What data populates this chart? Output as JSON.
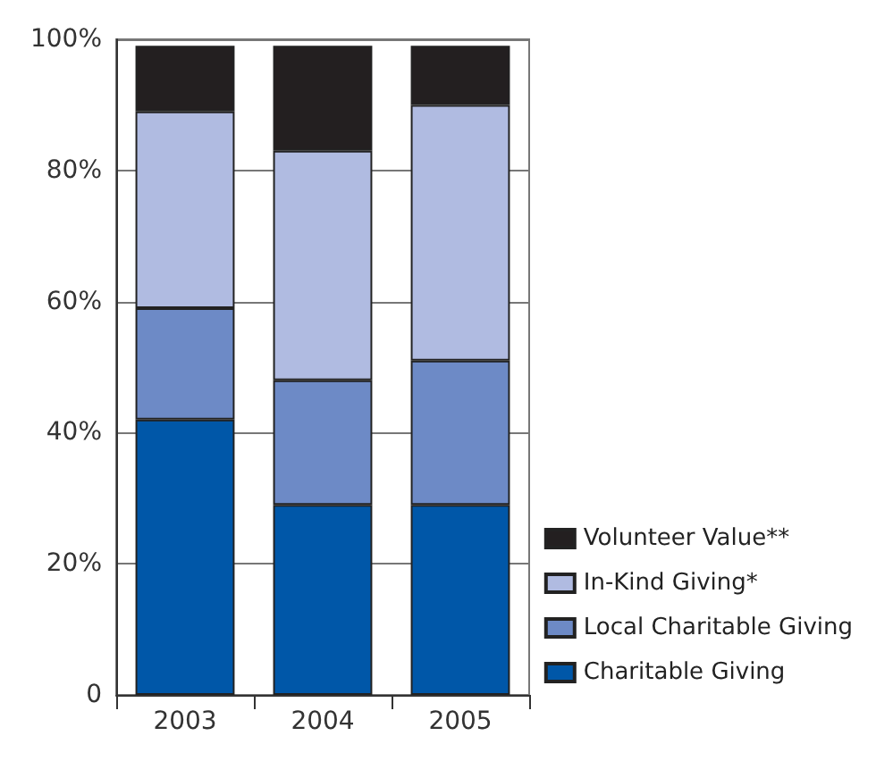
{
  "chart_data": {
    "type": "bar",
    "stacked": true,
    "categories": [
      "2003",
      "2004",
      "2005"
    ],
    "series": [
      {
        "name": "Charitable Giving",
        "color": "#0057a8",
        "values": [
          42,
          29,
          29
        ]
      },
      {
        "name": "Local Charitable Giving",
        "color": "#6d8ac6",
        "values": [
          17,
          19,
          22
        ]
      },
      {
        "name": "In-Kind Giving*",
        "color": "#b0bbe1",
        "values": [
          30,
          35,
          39
        ]
      },
      {
        "name": "Volunteer Value**",
        "color": "#231f20",
        "values": [
          10,
          16,
          9
        ]
      }
    ],
    "ylim": [
      0,
      100
    ],
    "yticks": [
      {
        "value": 0,
        "label": "0"
      },
      {
        "value": 20,
        "label": "20%"
      },
      {
        "value": 40,
        "label": "40%"
      },
      {
        "value": 60,
        "label": "60%"
      },
      {
        "value": 80,
        "label": "80%"
      },
      {
        "value": 100,
        "label": "100%"
      }
    ],
    "grid": "y",
    "legend": "bottom right"
  }
}
